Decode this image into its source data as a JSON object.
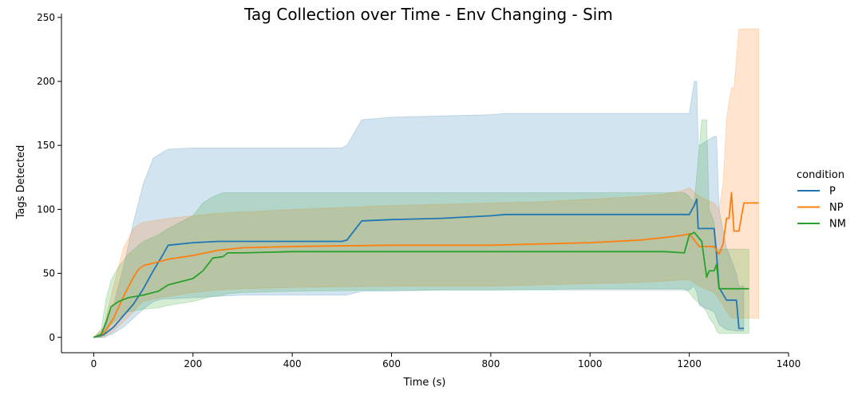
{
  "chart_data": {
    "type": "line",
    "title": "Tag Collection over Time - Env Changing - Sim",
    "xlabel": "Time (s)",
    "ylabel": "Tags Detected",
    "xlim": [
      -65,
      1400
    ],
    "ylim": [
      -12,
      253
    ],
    "xticks": [
      0,
      200,
      400,
      600,
      800,
      1000,
      1200,
      1400
    ],
    "yticks": [
      0,
      50,
      100,
      150,
      200,
      250
    ],
    "grid": false,
    "legend": {
      "title": "condition",
      "placement": "right"
    },
    "series": [
      {
        "name": "P",
        "color": "#1f77b4",
        "x": [
          0,
          20,
          40,
          60,
          80,
          100,
          120,
          140,
          150,
          200,
          250,
          300,
          400,
          500,
          510,
          540,
          600,
          700,
          800,
          830,
          1000,
          1200,
          1210,
          1215,
          1218,
          1220,
          1250,
          1255,
          1260,
          1275,
          1295,
          1300,
          1310
        ],
        "y": [
          0,
          2,
          8,
          17,
          26,
          38,
          52,
          65,
          72,
          74,
          75,
          75,
          75,
          75,
          76,
          91,
          92,
          93,
          95,
          96,
          96,
          96,
          103,
          108,
          85,
          85,
          85,
          65,
          39,
          29,
          29,
          7,
          7
        ],
        "band_upper": [
          0,
          5,
          25,
          55,
          90,
          120,
          140,
          145,
          147,
          148,
          148,
          148,
          148,
          148,
          150,
          170,
          172,
          173,
          174,
          175,
          175,
          175,
          200,
          200,
          150,
          150,
          157,
          157,
          100,
          70,
          50,
          40,
          40
        ],
        "band_lower": [
          0,
          0,
          3,
          8,
          15,
          22,
          28,
          30,
          30,
          31,
          32,
          33,
          33,
          33,
          33,
          36,
          36,
          37,
          37,
          37,
          37,
          37,
          40,
          35,
          30,
          25,
          20,
          15,
          10,
          6,
          5,
          5,
          5
        ]
      },
      {
        "name": "NP",
        "color": "#ff7f0e",
        "x": [
          0,
          20,
          40,
          60,
          80,
          90,
          100,
          120,
          150,
          200,
          250,
          300,
          400,
          600,
          700,
          800,
          900,
          1000,
          1100,
          1150,
          1190,
          1200,
          1220,
          1250,
          1260,
          1268,
          1275,
          1280,
          1285,
          1290,
          1300,
          1310,
          1340
        ],
        "y": [
          0,
          3,
          15,
          32,
          47,
          53,
          56,
          58,
          61,
          64,
          68,
          70,
          71,
          72,
          72,
          72,
          73,
          74,
          76,
          78,
          80,
          81,
          71,
          71,
          65,
          73,
          93,
          93,
          113,
          83,
          83,
          105,
          105
        ],
        "band_upper": [
          0,
          8,
          40,
          70,
          85,
          88,
          90,
          91,
          93,
          95,
          97,
          98,
          100,
          103,
          104,
          105,
          106,
          108,
          110,
          112,
          115,
          117,
          110,
          105,
          100,
          120,
          170,
          185,
          195,
          195,
          241,
          241,
          241
        ],
        "band_lower": [
          0,
          0,
          5,
          12,
          20,
          25,
          28,
          30,
          32,
          35,
          37,
          38,
          39,
          40,
          40,
          40,
          41,
          42,
          43,
          44,
          45,
          45,
          40,
          35,
          30,
          25,
          20,
          18,
          15,
          15,
          15,
          15,
          15
        ]
      },
      {
        "name": "NM",
        "color": "#2ca02c",
        "x": [
          0,
          15,
          25,
          35,
          50,
          70,
          100,
          130,
          150,
          200,
          220,
          240,
          260,
          270,
          300,
          400,
          600,
          800,
          1000,
          1150,
          1190,
          1200,
          1210,
          1225,
          1235,
          1240,
          1250,
          1255,
          1260,
          1300,
          1320
        ],
        "y": [
          0,
          2,
          12,
          24,
          28,
          31,
          33,
          36,
          41,
          46,
          52,
          62,
          63,
          66,
          66,
          67,
          67,
          67,
          67,
          67,
          66,
          80,
          82,
          75,
          47,
          52,
          52,
          57,
          38,
          38,
          38
        ],
        "band_upper": [
          0,
          6,
          30,
          45,
          55,
          65,
          75,
          80,
          85,
          95,
          105,
          110,
          113,
          113,
          113,
          113,
          113,
          113,
          113,
          113,
          113,
          110,
          105,
          170,
          170,
          100,
          90,
          69,
          69,
          69,
          69
        ],
        "band_lower": [
          0,
          0,
          5,
          10,
          15,
          20,
          22,
          23,
          25,
          28,
          30,
          32,
          33,
          34,
          35,
          36,
          37,
          37,
          38,
          38,
          38,
          35,
          30,
          25,
          20,
          15,
          10,
          5,
          3,
          3,
          3
        ]
      }
    ]
  }
}
